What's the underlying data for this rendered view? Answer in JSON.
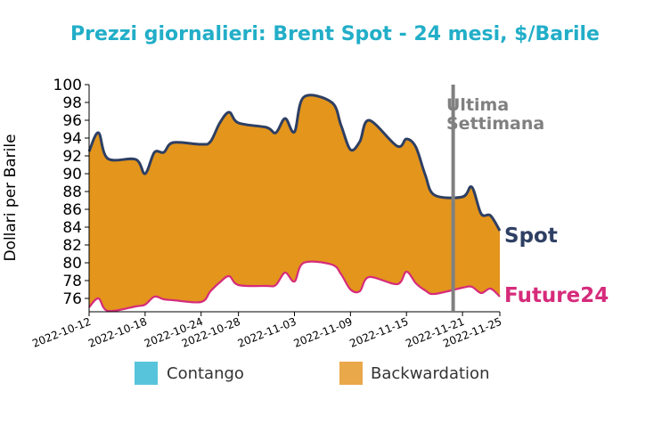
{
  "chart_data": {
    "type": "area",
    "title": "Prezzi giornalieri: Brent Spot - 24 mesi, $/Barile",
    "ylabel": "Dollari per Barile",
    "xlabel": "",
    "ylim": [
      74.5,
      100
    ],
    "yticks": [
      76,
      78,
      80,
      82,
      84,
      86,
      88,
      90,
      92,
      94,
      96,
      98,
      100
    ],
    "xtick_labels": [
      "2022-10-12",
      "2022-10-18",
      "2022-10-24",
      "2022-10-28",
      "2022-11-03",
      "2022-11-09",
      "2022-11-15",
      "2022-11-21",
      "2022-11-25"
    ],
    "x": [
      "2022-10-12",
      "2022-10-13",
      "2022-10-14",
      "2022-10-17",
      "2022-10-18",
      "2022-10-19",
      "2022-10-20",
      "2022-10-21",
      "2022-10-24",
      "2022-10-25",
      "2022-10-26",
      "2022-10-27",
      "2022-10-28",
      "2022-10-31",
      "2022-11-01",
      "2022-11-02",
      "2022-11-03",
      "2022-11-04",
      "2022-11-07",
      "2022-11-08",
      "2022-11-09",
      "2022-11-10",
      "2022-11-11",
      "2022-11-14",
      "2022-11-15",
      "2022-11-16",
      "2022-11-17",
      "2022-11-18",
      "2022-11-21",
      "2022-11-22",
      "2022-11-23",
      "2022-11-24",
      "2022-11-25"
    ],
    "series": [
      {
        "name": "Spot",
        "color": "#2e3f63",
        "values": [
          92.5,
          94.6,
          91.7,
          91.6,
          90.0,
          92.4,
          92.4,
          93.5,
          93.3,
          93.6,
          95.7,
          96.9,
          95.7,
          95.2,
          94.6,
          96.2,
          94.7,
          98.6,
          98.0,
          95.4,
          92.7,
          93.6,
          96.0,
          93.1,
          93.9,
          93.0,
          89.9,
          87.6,
          87.4,
          88.5,
          85.5,
          85.3,
          83.6
        ]
      },
      {
        "name": "Future24",
        "color": "#d62b7b",
        "values": [
          75.0,
          76.0,
          74.6,
          75.1,
          75.3,
          76.2,
          75.9,
          75.8,
          75.6,
          76.8,
          77.8,
          78.5,
          77.5,
          77.4,
          77.5,
          78.9,
          77.9,
          80.0,
          79.8,
          78.7,
          77.0,
          76.8,
          78.4,
          77.6,
          79.0,
          77.7,
          76.9,
          76.5,
          77.2,
          77.3,
          76.6,
          77.1,
          76.2
        ]
      }
    ],
    "fill_color": "#e3951c",
    "marker": {
      "at": "2022-11-20",
      "label_line1": "Ultima",
      "label_line2": "Settimana",
      "color": "#808080"
    },
    "legend": {
      "placement": "bottom-center",
      "items": [
        {
          "label": "Contango",
          "color": "#58c4dc"
        },
        {
          "label": "Backwardation",
          "color": "#e9a84a"
        }
      ]
    },
    "grid": false
  }
}
